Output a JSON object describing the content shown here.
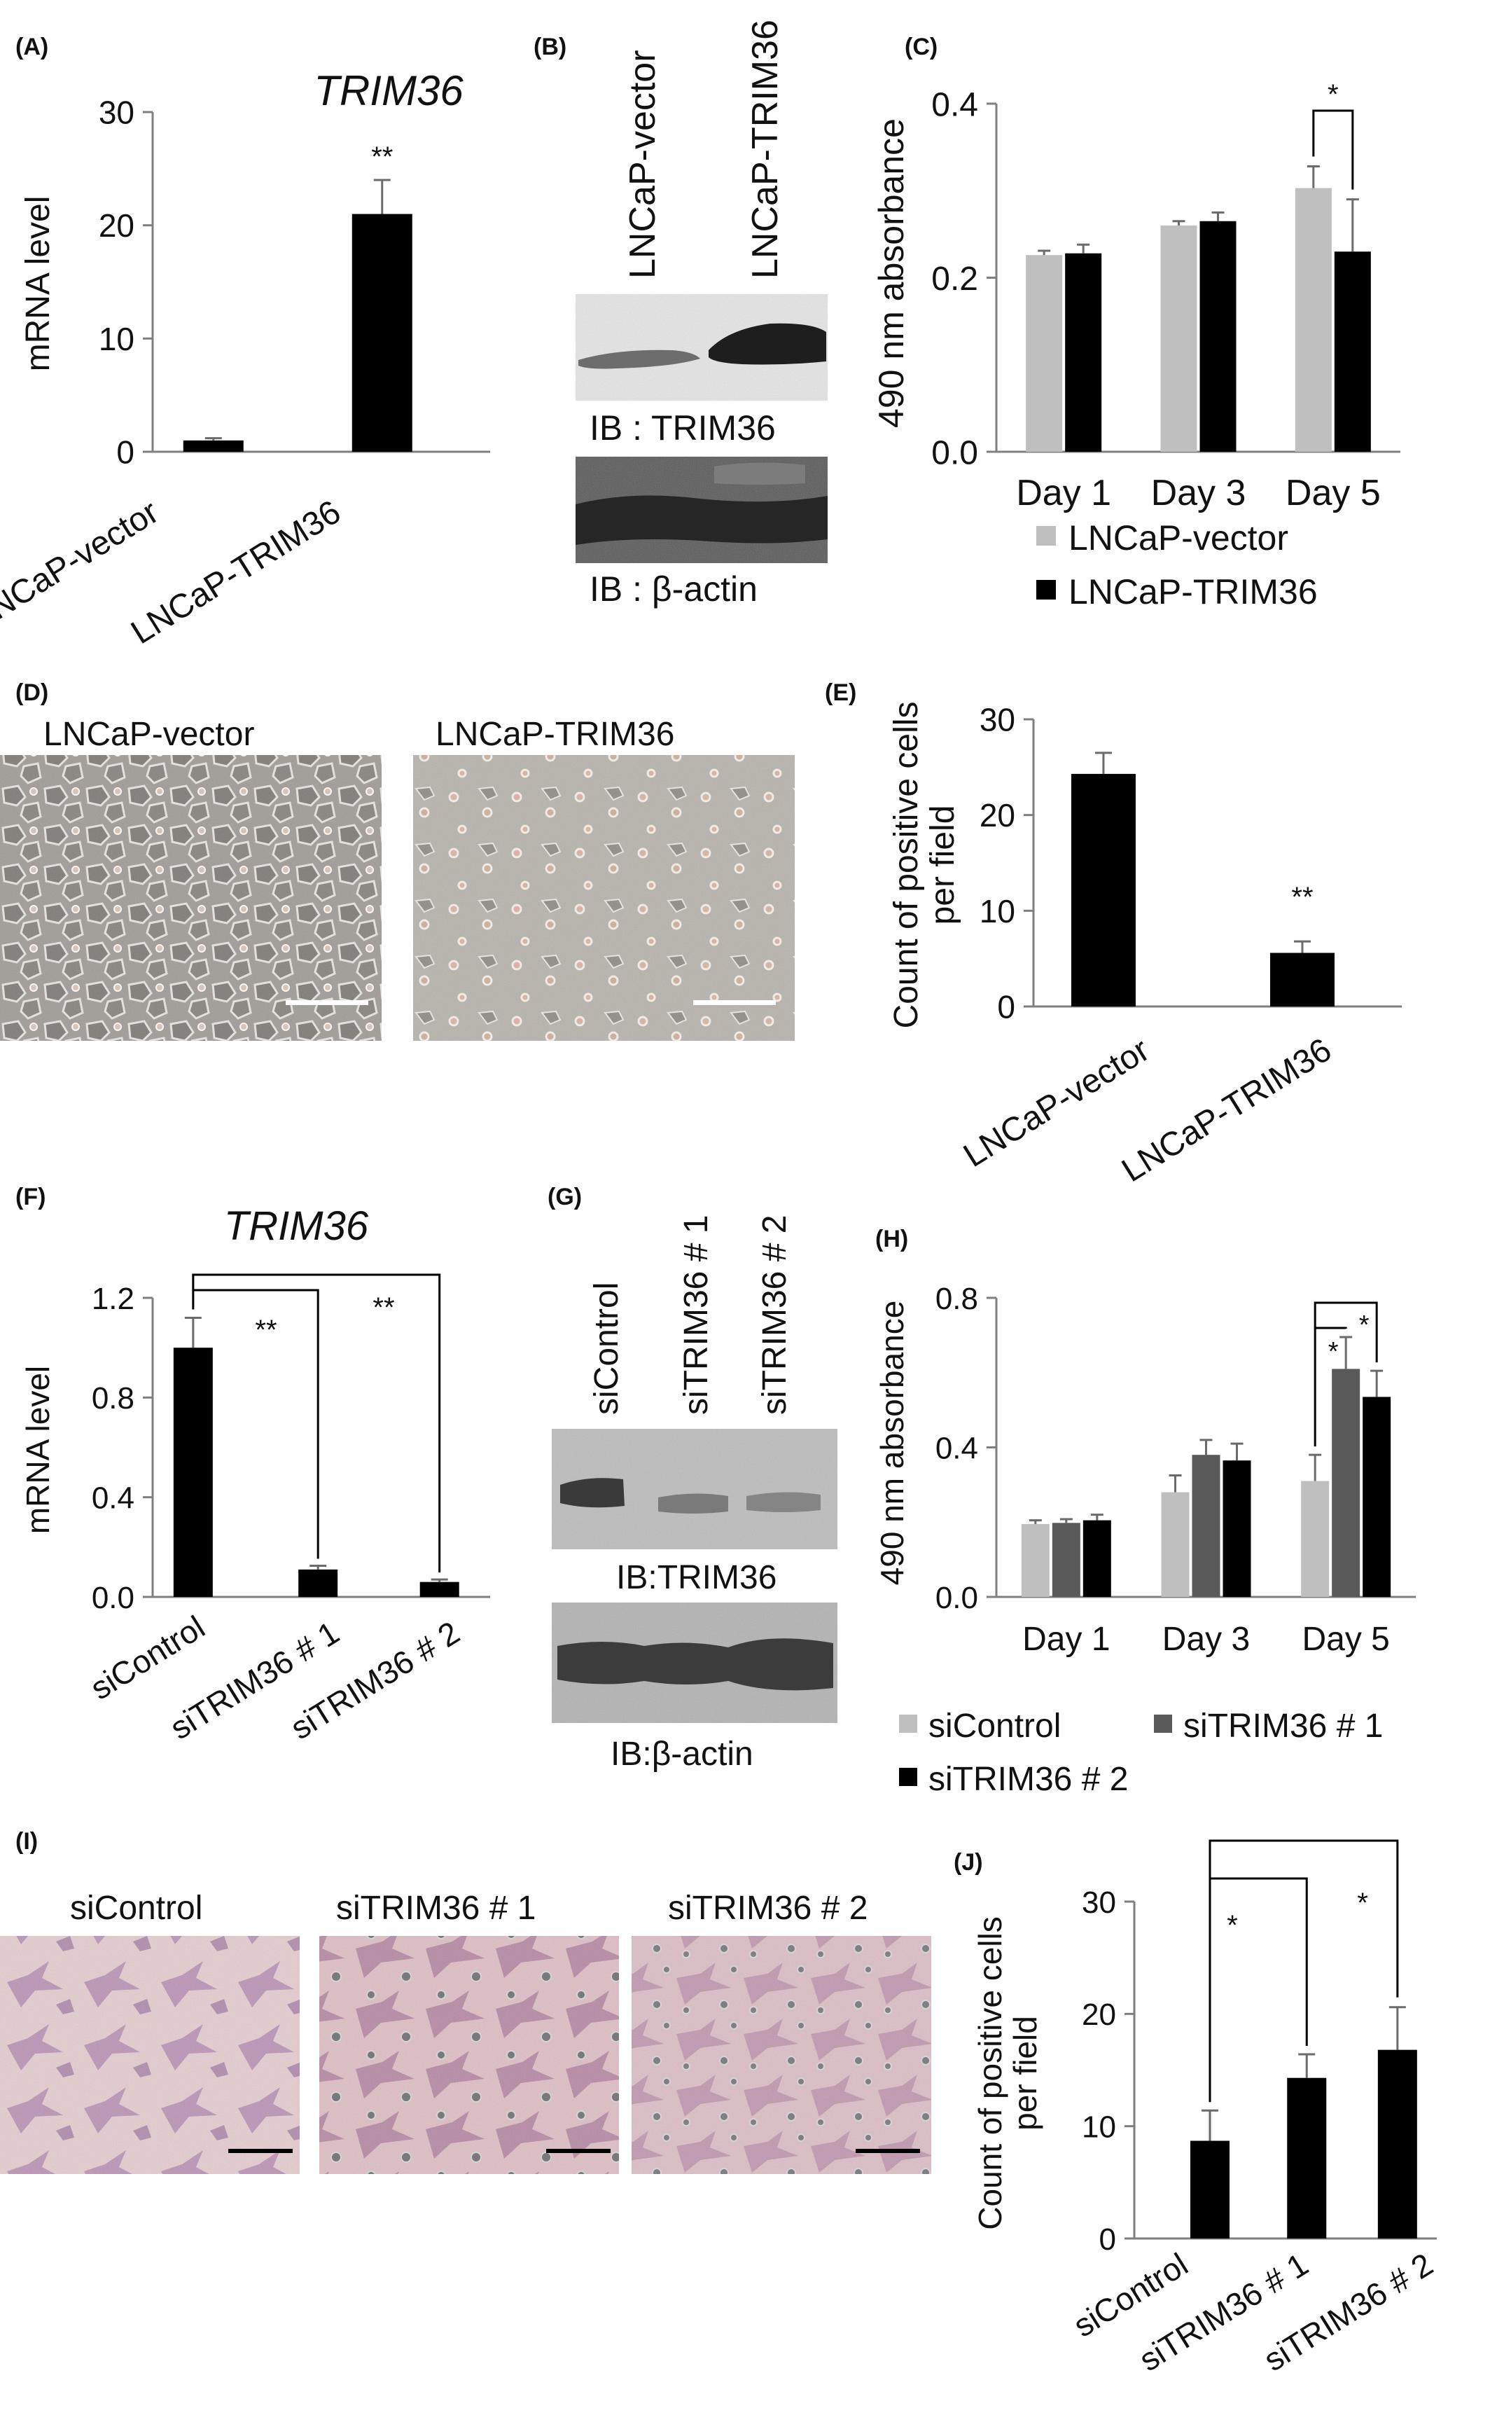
{
  "panels": {
    "A": "(A)",
    "B": "(B)",
    "C": "(C)",
    "D": "(D)",
    "E": "(E)",
    "F": "(F)",
    "G": "(G)",
    "H": "(H)",
    "I": "(I)",
    "J": "(J)"
  },
  "blots": {
    "B": {
      "lanes": [
        "LNCaP-vector",
        "LNCaP-TRIM36"
      ],
      "labels": [
        "IB : TRIM36",
        "IB : β-actin"
      ]
    },
    "G": {
      "lanes": [
        "siControl",
        "siTRIM36 # 1",
        "siTRIM36 # 2"
      ],
      "labels": [
        "IB:TRIM36",
        "IB:β-actin"
      ]
    }
  },
  "images": {
    "D": [
      "LNCaP-vector",
      "LNCaP-TRIM36"
    ],
    "I": [
      "siControl",
      "siTRIM36 # 1",
      "siTRIM36 # 2"
    ]
  },
  "colors": {
    "black": "#000000",
    "light_gray": "#bfbfbf",
    "dark_gray": "#595959",
    "cell_bg": "#b9b5ad",
    "stain_bg": "#e2c4c8"
  },
  "chart_data": [
    {
      "id": "A",
      "type": "bar",
      "title": "TRIM36",
      "categories": [
        "LNCaP-vector",
        "LNCaP-TRIM36"
      ],
      "values": [
        1.0,
        21.0
      ],
      "errors": [
        0.2,
        3.0
      ],
      "ylabel": "mRNA level",
      "ylim": [
        0,
        30
      ],
      "yticks": [
        "0",
        "10",
        "20",
        "30"
      ],
      "significance": [
        "",
        "**"
      ]
    },
    {
      "id": "C",
      "type": "bar",
      "ylabel": "490 nm absorbance",
      "categories": [
        "Day 1",
        "Day 3",
        "Day 5"
      ],
      "ylim": [
        0,
        0.4
      ],
      "yticks": [
        "0.0",
        "0.2",
        "0.4"
      ],
      "series": [
        {
          "name": "LNCaP-vector",
          "values": [
            0.226,
            0.26,
            0.303
          ],
          "errors": [
            0.005,
            0.005,
            0.025
          ]
        },
        {
          "name": "LNCaP-TRIM36",
          "values": [
            0.228,
            0.265,
            0.23
          ],
          "errors": [
            0.01,
            0.01,
            0.06
          ]
        }
      ],
      "legend": "bottom",
      "significance": "*"
    },
    {
      "id": "E",
      "type": "bar",
      "ylabel": "Count of positive cells per field",
      "categories": [
        "LNCaP-vector",
        "LNCaP-TRIM36"
      ],
      "values": [
        24.3,
        5.6
      ],
      "errors": [
        2.2,
        1.2
      ],
      "ylim": [
        0,
        30
      ],
      "yticks": [
        "0",
        "10",
        "20",
        "30"
      ],
      "significance": [
        "",
        "**"
      ]
    },
    {
      "id": "F",
      "type": "bar",
      "title": "TRIM36",
      "ylabel": "mRNA level",
      "categories": [
        "siControl",
        "siTRIM36 # 1",
        "siTRIM36 # 2"
      ],
      "values": [
        1.0,
        0.11,
        0.06
      ],
      "errors": [
        0.12,
        0.015,
        0.01
      ],
      "ylim": [
        0,
        1.2
      ],
      "yticks": [
        "0.0",
        "0.4",
        "0.8",
        "1.2"
      ],
      "significance": [
        "**",
        "**"
      ]
    },
    {
      "id": "H",
      "type": "bar",
      "ylabel": "490 nm absorbance",
      "categories": [
        "Day 1",
        "Day 3",
        "Day 5"
      ],
      "ylim": [
        0,
        0.8
      ],
      "yticks": [
        "0.0",
        "0.4",
        "0.8"
      ],
      "series": [
        {
          "name": "siControl",
          "values": [
            0.195,
            0.28,
            0.31
          ],
          "errors": [
            0.01,
            0.045,
            0.07
          ]
        },
        {
          "name": "siTRIM36 # 1",
          "values": [
            0.198,
            0.38,
            0.61
          ],
          "errors": [
            0.01,
            0.04,
            0.085
          ]
        },
        {
          "name": "siTRIM36 # 2",
          "values": [
            0.205,
            0.365,
            0.535
          ],
          "errors": [
            0.015,
            0.045,
            0.07
          ]
        }
      ],
      "legend": "bottom",
      "significance": [
        "*",
        "*"
      ]
    },
    {
      "id": "J",
      "type": "bar",
      "ylabel": "Count of positive cells per field",
      "categories": [
        "siControl",
        "siTRIM36 # 1",
        "siTRIM36 # 2"
      ],
      "values": [
        8.7,
        14.3,
        16.8
      ],
      "errors": [
        2.7,
        2.1,
        3.8
      ],
      "ylim": [
        0,
        30
      ],
      "yticks": [
        "0",
        "10",
        "20",
        "30"
      ],
      "significance": [
        "*",
        "*"
      ]
    }
  ]
}
